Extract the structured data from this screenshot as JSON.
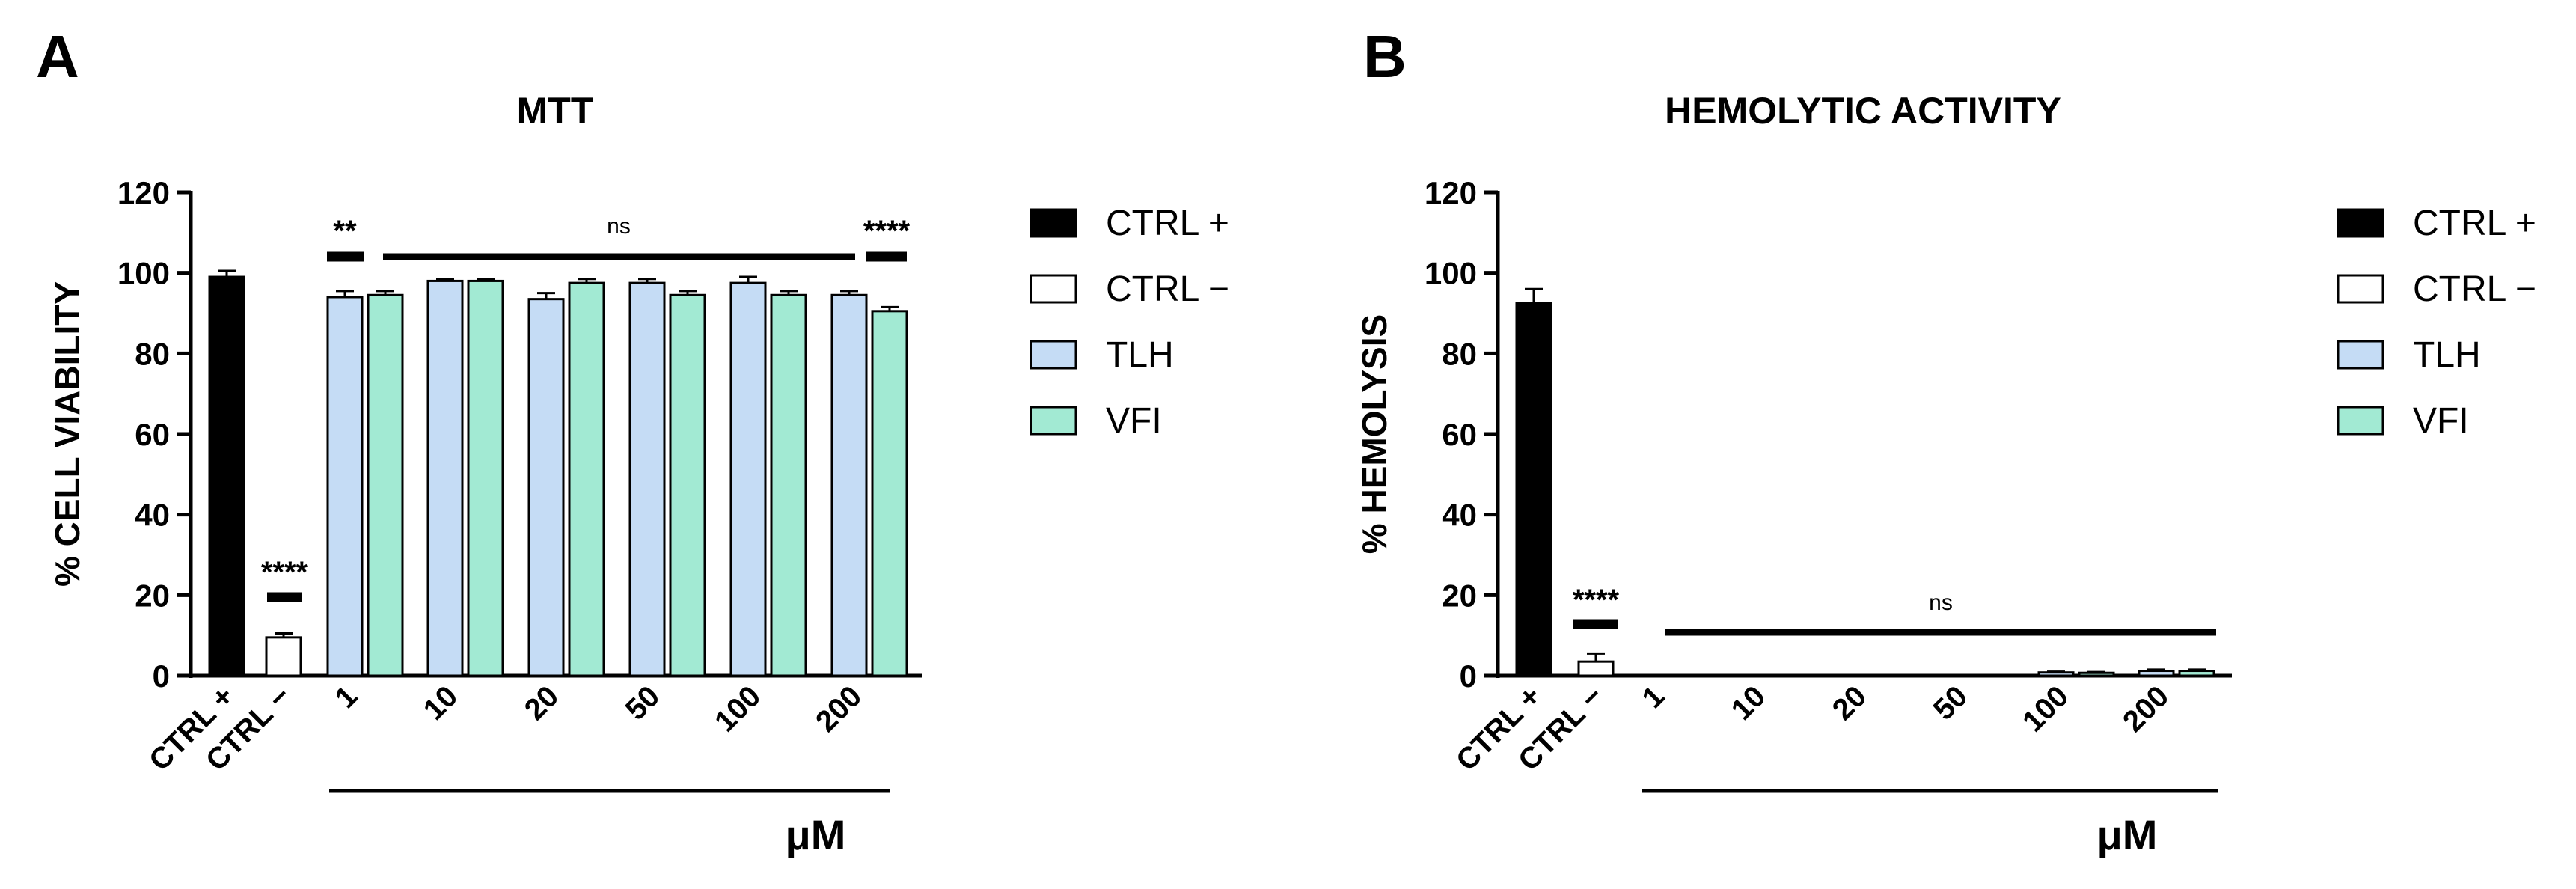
{
  "chart_data": [
    {
      "panel": "A",
      "type": "bar",
      "title": "MTT",
      "ylabel": "% CELL VIABILITY",
      "xlabel": "μM",
      "ylim": [
        0,
        120
      ],
      "yticks": [
        0,
        20,
        40,
        60,
        80,
        100,
        120
      ],
      "controls": [
        {
          "name": "CTRL +",
          "value": 99,
          "error": 1.5
        },
        {
          "name": "CTRL −",
          "value": 9.5,
          "error": 1
        }
      ],
      "categories": [
        "1",
        "10",
        "20",
        "50",
        "100",
        "200"
      ],
      "series": [
        {
          "name": "TLH",
          "values": [
            94,
            98,
            93.5,
            97.5,
            97.5,
            94.5
          ],
          "errors": [
            1.5,
            0.4,
            1.5,
            1,
            1.5,
            1
          ]
        },
        {
          "name": "VFI",
          "values": [
            94.5,
            98,
            97.5,
            94.5,
            94.5,
            90.5
          ],
          "errors": [
            1,
            0.4,
            1,
            1,
            1,
            1
          ]
        }
      ],
      "significance": [
        {
          "label": "****",
          "span": "CTRL −"
        },
        {
          "label": "**",
          "span": "1"
        },
        {
          "label": "ns",
          "span": "1–200"
        },
        {
          "label": "****",
          "span": "200"
        }
      ],
      "legend": [
        "CTRL +",
        "CTRL −",
        "TLH",
        "VFI"
      ]
    },
    {
      "panel": "B",
      "type": "bar",
      "title": "HEMOLYTIC ACTIVITY",
      "ylabel": "% HEMOLYSIS",
      "xlabel": "μM",
      "ylim": [
        0,
        120
      ],
      "yticks": [
        0,
        20,
        40,
        60,
        80,
        100,
        120
      ],
      "controls": [
        {
          "name": "CTRL +",
          "value": 92.5,
          "error": 3.5
        },
        {
          "name": "CTRL −",
          "value": 3.5,
          "error": 2
        }
      ],
      "categories": [
        "1",
        "10",
        "20",
        "50",
        "100",
        "200"
      ],
      "series": [
        {
          "name": "TLH",
          "values": [
            0,
            0,
            0,
            0,
            0.8,
            1.2
          ],
          "errors": [
            0,
            0,
            0,
            0,
            0.2,
            0.3
          ]
        },
        {
          "name": "VFI",
          "values": [
            0,
            0,
            0,
            0,
            0.7,
            1.2
          ],
          "errors": [
            0,
            0,
            0,
            0,
            0.2,
            0.3
          ]
        }
      ],
      "significance": [
        {
          "label": "****",
          "span": "CTRL −"
        },
        {
          "label": "ns",
          "span": "1–200"
        }
      ],
      "legend": [
        "CTRL +",
        "CTRL −",
        "TLH",
        "VFI"
      ]
    }
  ],
  "colors": {
    "ctrl_pos": "#000000",
    "ctrl_neg": "#ffffff",
    "tlh": "#c5dcf5",
    "vfi": "#a2ead3",
    "stroke": "#000000"
  }
}
